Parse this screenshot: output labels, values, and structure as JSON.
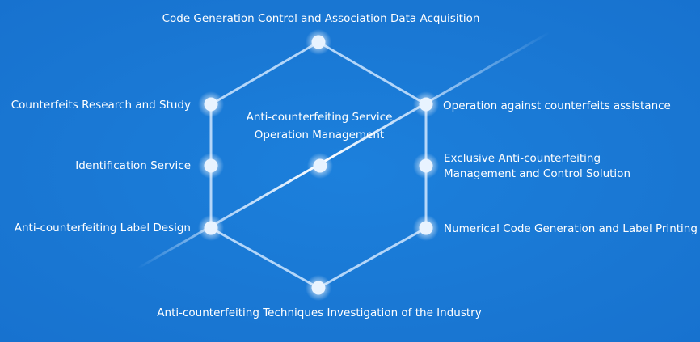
{
  "colors": {
    "background": "#1a7ad6",
    "line": "#cfe6ff",
    "node": "#e8f3ff"
  },
  "labels": {
    "top": "Code Generation Control and Association Data Acquisition",
    "upper_left": "Counterfeits Research and Study",
    "middle_left": "Identification Service",
    "lower_left": "Anti-counterfeiting Label Design",
    "upper_right": "Operation against counterfeits assistance",
    "middle_right_1": "Exclusive Anti-counterfeiting",
    "middle_right_2": "Management and Control Solution",
    "lower_right": "Numerical Code Generation and Label Printing",
    "bottom": "Anti-counterfeiting Techniques Investigation of the Industry",
    "center_1": "Anti-counterfeiting Service",
    "center_2": "Operation Management"
  }
}
